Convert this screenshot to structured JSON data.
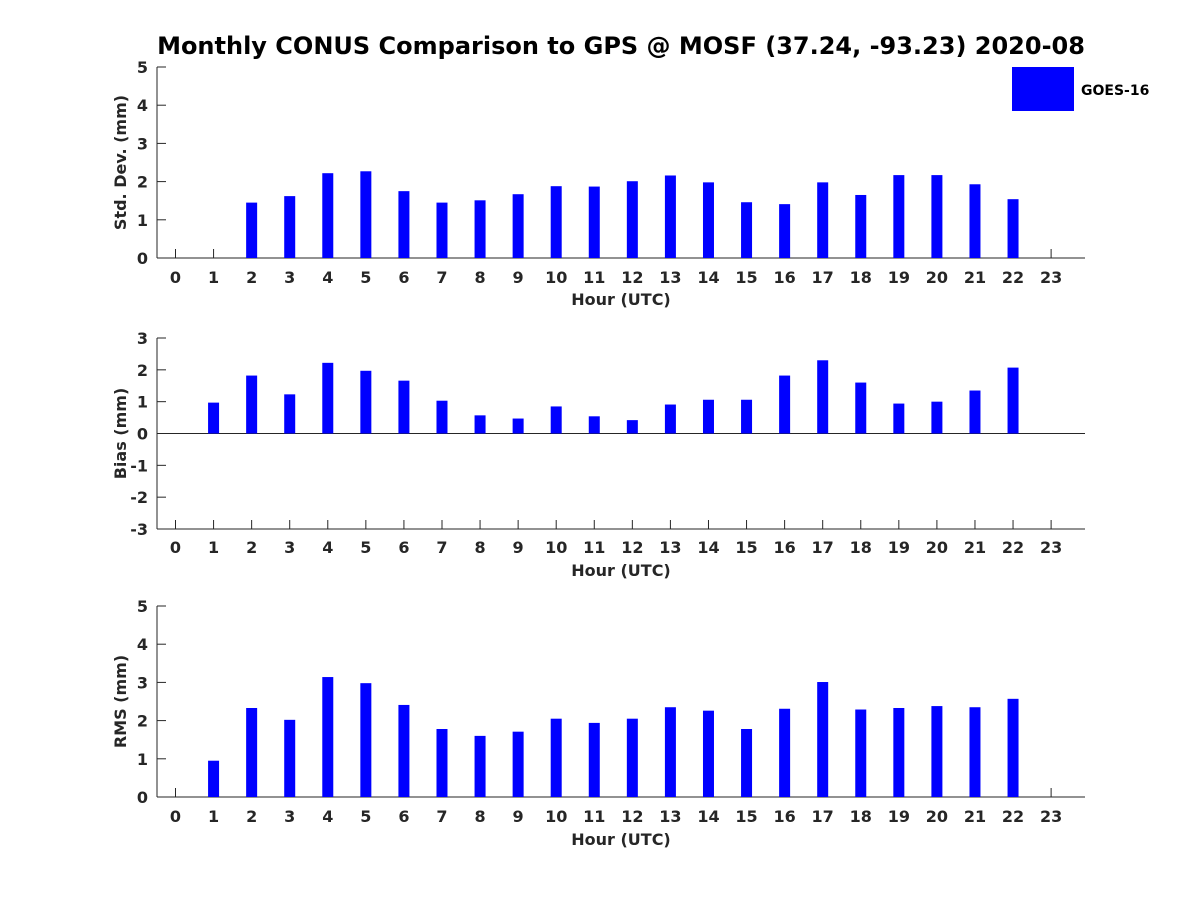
{
  "chart_data": {
    "title": "Monthly CONUS Comparison to GPS @ MOSF (37.24, -93.23) 2020-08",
    "type": "bar",
    "legend": {
      "label": "GOES-16",
      "placement": "top-right",
      "color": "#0000ff"
    },
    "bar_color": "#0000ff",
    "panels": [
      {
        "type": "bar",
        "series_name": "GOES-16",
        "xlabel": "Hour (UTC)",
        "ylabel": "Std. Dev. (mm)",
        "ylim": [
          0,
          5
        ],
        "yticks": [
          0,
          1,
          2,
          3,
          4,
          5
        ],
        "categories": [
          0,
          1,
          2,
          3,
          4,
          5,
          6,
          7,
          8,
          9,
          10,
          11,
          12,
          13,
          14,
          15,
          16,
          17,
          18,
          19,
          20,
          21,
          22,
          23
        ],
        "values": [
          null,
          null,
          1.45,
          1.62,
          2.22,
          2.27,
          1.75,
          1.45,
          1.51,
          1.67,
          1.88,
          1.87,
          2.01,
          2.16,
          1.98,
          1.46,
          1.41,
          1.98,
          1.65,
          2.17,
          2.17,
          1.93,
          1.54,
          null
        ]
      },
      {
        "type": "bar",
        "series_name": "GOES-16",
        "xlabel": "Hour (UTC)",
        "ylabel": "Bias (mm)",
        "ylim": [
          -3,
          3
        ],
        "yticks": [
          -3,
          -2,
          -1,
          0,
          1,
          2,
          3
        ],
        "zero_line": true,
        "categories": [
          0,
          1,
          2,
          3,
          4,
          5,
          6,
          7,
          8,
          9,
          10,
          11,
          12,
          13,
          14,
          15,
          16,
          17,
          18,
          19,
          20,
          21,
          22,
          23
        ],
        "values": [
          null,
          0.97,
          1.82,
          1.23,
          2.22,
          1.97,
          1.66,
          1.03,
          0.57,
          0.47,
          0.85,
          0.54,
          0.42,
          0.91,
          1.06,
          1.06,
          1.82,
          2.3,
          1.6,
          0.94,
          1.0,
          1.35,
          2.07,
          null
        ]
      },
      {
        "type": "bar",
        "series_name": "GOES-16",
        "xlabel": "Hour (UTC)",
        "ylabel": "RMS (mm)",
        "ylim": [
          0,
          5
        ],
        "yticks": [
          0,
          1,
          2,
          3,
          4,
          5
        ],
        "categories": [
          0,
          1,
          2,
          3,
          4,
          5,
          6,
          7,
          8,
          9,
          10,
          11,
          12,
          13,
          14,
          15,
          16,
          17,
          18,
          19,
          20,
          21,
          22,
          23
        ],
        "values": [
          null,
          0.95,
          2.33,
          2.02,
          3.14,
          2.98,
          2.41,
          1.78,
          1.6,
          1.71,
          2.05,
          1.94,
          2.05,
          2.35,
          2.26,
          1.78,
          2.31,
          3.01,
          2.29,
          2.33,
          2.38,
          2.35,
          2.57,
          null
        ]
      }
    ]
  }
}
